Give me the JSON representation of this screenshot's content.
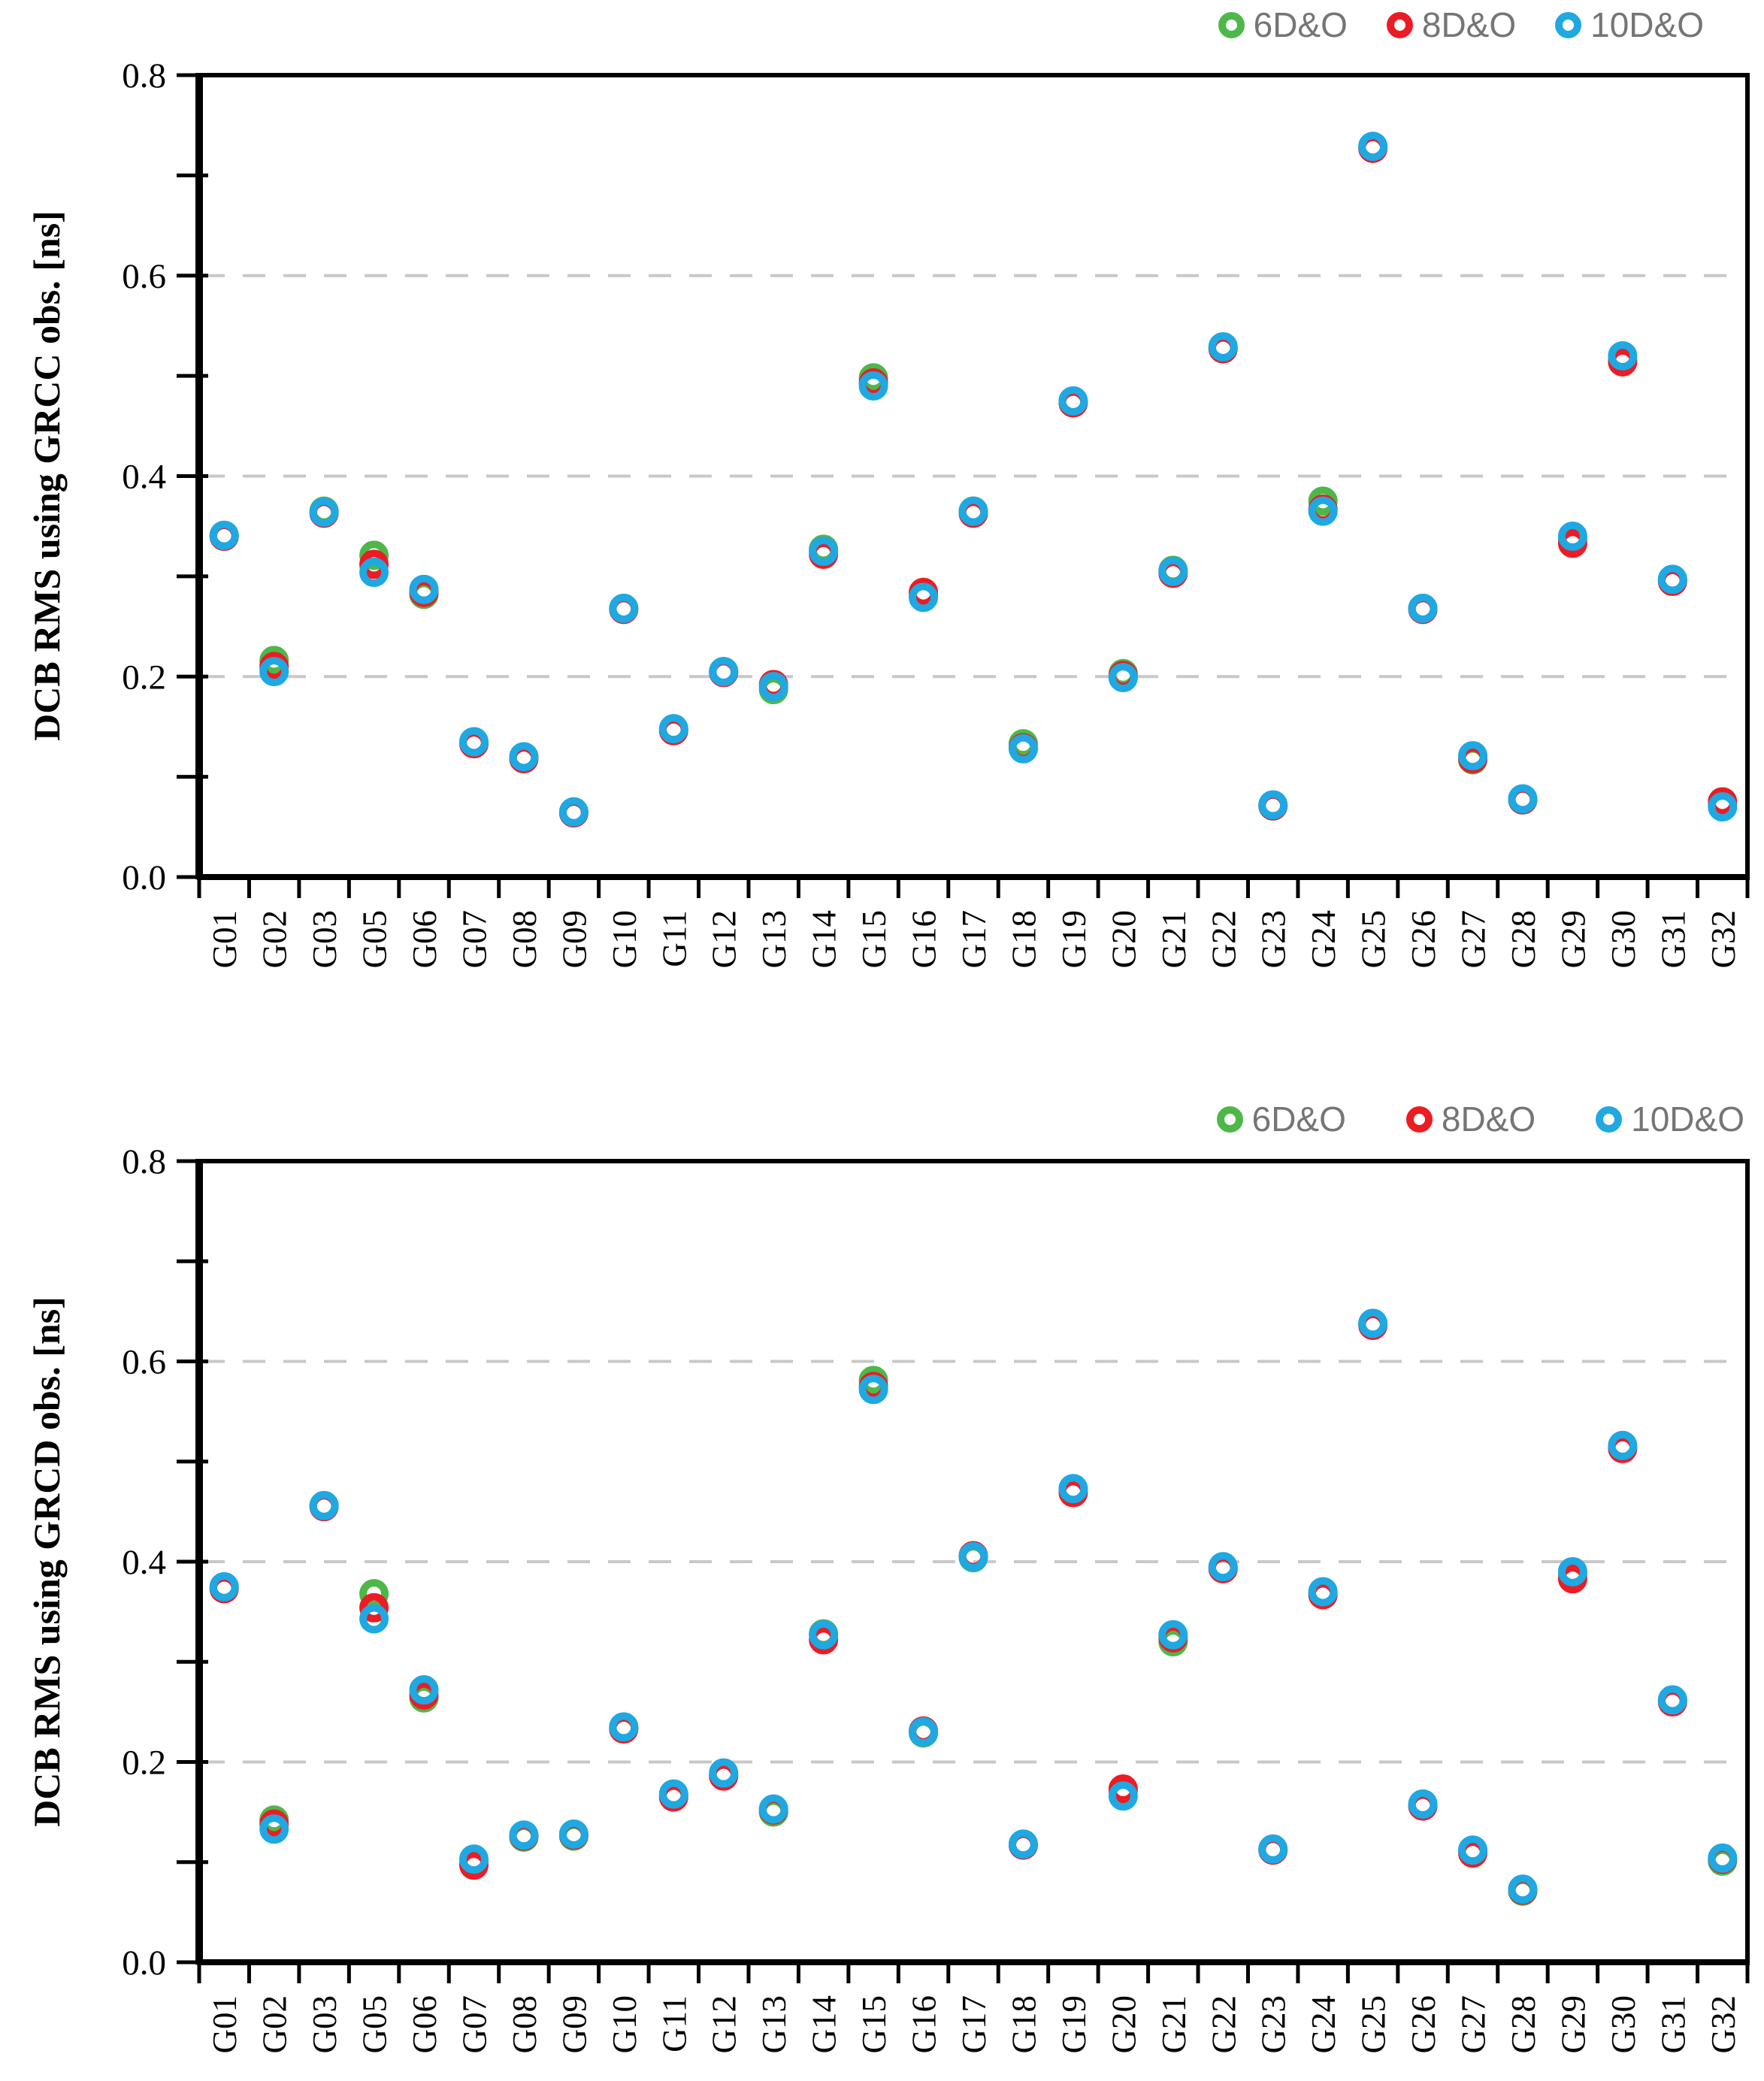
{
  "page": {
    "background": "#ffffff"
  },
  "colors": {
    "series_green": "#4DB848",
    "series_red": "#EC1C24",
    "series_blue": "#1FA8E2",
    "grid": "#c8c8c8",
    "axis": "#000000",
    "legend_text": "#757575"
  },
  "chart_data": [
    {
      "type": "scatter",
      "ylabel": "DCB RMS using GRCC obs. [ns]",
      "xlabel": "",
      "ylim": [
        0.0,
        0.8
      ],
      "yticks": [
        0.0,
        0.2,
        0.4,
        0.6,
        0.8
      ],
      "grid_values": [
        0.2,
        0.4,
        0.6
      ],
      "grid_style": "dashed horizontal",
      "legend_position": "top-right",
      "categories": [
        "G01",
        "G02",
        "G03",
        "G05",
        "G06",
        "G07",
        "G08",
        "G09",
        "G10",
        "G11",
        "G12",
        "G13",
        "G14",
        "G15",
        "G16",
        "G17",
        "G18",
        "G19",
        "G20",
        "G21",
        "G22",
        "G23",
        "G24",
        "G25",
        "G26",
        "G27",
        "G28",
        "G29",
        "G30",
        "G31",
        "G32"
      ],
      "series": [
        {
          "name": "6D&O",
          "color": "#4DB848",
          "values": [
            0.34,
            0.216,
            0.365,
            0.321,
            0.282,
            0.134,
            0.119,
            0.064,
            0.268,
            0.147,
            0.205,
            0.187,
            0.327,
            0.498,
            0.281,
            0.365,
            0.133,
            0.474,
            0.203,
            0.306,
            0.528,
            0.071,
            0.375,
            0.728,
            0.268,
            0.117,
            0.077,
            0.337,
            0.516,
            0.296,
            0.073
          ]
        },
        {
          "name": "8D&O",
          "color": "#EC1C24",
          "values": [
            0.34,
            0.21,
            0.363,
            0.312,
            0.284,
            0.133,
            0.118,
            0.064,
            0.267,
            0.146,
            0.204,
            0.192,
            0.322,
            0.493,
            0.284,
            0.363,
            0.129,
            0.473,
            0.201,
            0.303,
            0.527,
            0.071,
            0.367,
            0.727,
            0.267,
            0.118,
            0.077,
            0.333,
            0.514,
            0.295,
            0.075
          ]
        },
        {
          "name": "10D&O",
          "color": "#1FA8E2",
          "values": [
            0.341,
            0.205,
            0.364,
            0.304,
            0.287,
            0.135,
            0.12,
            0.065,
            0.268,
            0.148,
            0.205,
            0.19,
            0.325,
            0.49,
            0.279,
            0.365,
            0.128,
            0.475,
            0.199,
            0.305,
            0.529,
            0.072,
            0.365,
            0.729,
            0.268,
            0.121,
            0.078,
            0.34,
            0.52,
            0.297,
            0.07
          ]
        }
      ]
    },
    {
      "type": "scatter",
      "ylabel": "DCB RMS using GRCD obs. [ns]",
      "xlabel": "",
      "ylim": [
        0.0,
        0.8
      ],
      "yticks": [
        0.0,
        0.2,
        0.4,
        0.6,
        0.8
      ],
      "grid_values": [
        0.2,
        0.4,
        0.6
      ],
      "grid_style": "dashed horizontal",
      "legend_position": "top-right",
      "categories": [
        "G01",
        "G02",
        "G03",
        "G05",
        "G06",
        "G07",
        "G08",
        "G09",
        "G10",
        "G11",
        "G12",
        "G13",
        "G14",
        "G15",
        "G16",
        "G17",
        "G18",
        "G19",
        "G20",
        "G21",
        "G22",
        "G23",
        "G24",
        "G25",
        "G26",
        "G27",
        "G28",
        "G29",
        "G30",
        "G31",
        "G32"
      ],
      "series": [
        {
          "name": "6D&O",
          "color": "#4DB848",
          "values": [
            0.374,
            0.142,
            0.456,
            0.368,
            0.264,
            0.099,
            0.125,
            0.126,
            0.234,
            0.166,
            0.187,
            0.15,
            0.328,
            0.581,
            0.229,
            0.404,
            0.117,
            0.472,
            0.171,
            0.32,
            0.394,
            0.112,
            0.368,
            0.637,
            0.157,
            0.11,
            0.071,
            0.387,
            0.514,
            0.261,
            0.101
          ]
        },
        {
          "name": "8D&O",
          "color": "#EC1C24",
          "values": [
            0.373,
            0.138,
            0.455,
            0.354,
            0.267,
            0.097,
            0.126,
            0.127,
            0.233,
            0.165,
            0.186,
            0.152,
            0.322,
            0.575,
            0.231,
            0.406,
            0.117,
            0.469,
            0.173,
            0.324,
            0.393,
            0.112,
            0.367,
            0.636,
            0.156,
            0.109,
            0.072,
            0.383,
            0.513,
            0.26,
            0.103
          ]
        },
        {
          "name": "10D&O",
          "color": "#1FA8E2",
          "values": [
            0.375,
            0.133,
            0.456,
            0.343,
            0.272,
            0.103,
            0.127,
            0.128,
            0.235,
            0.168,
            0.189,
            0.153,
            0.327,
            0.572,
            0.23,
            0.405,
            0.118,
            0.473,
            0.166,
            0.327,
            0.395,
            0.113,
            0.37,
            0.638,
            0.158,
            0.112,
            0.073,
            0.39,
            0.516,
            0.262,
            0.104
          ]
        }
      ]
    }
  ]
}
